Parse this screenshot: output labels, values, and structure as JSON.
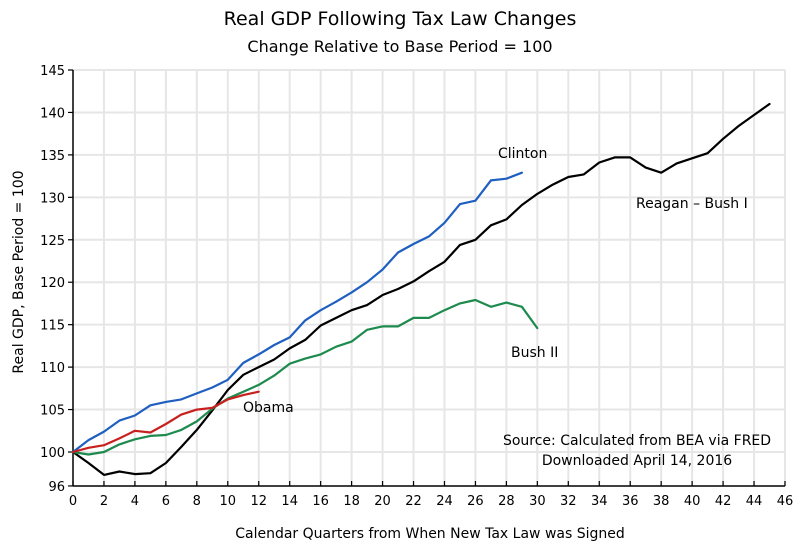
{
  "chart_data": {
    "type": "line",
    "title": "Real GDP Following Tax Law Changes",
    "subtitle": "Change Relative to Base Period = 100",
    "xlabel": "Calendar Quarters from When New Tax Law was Signed",
    "ylabel": "Real GDP, Base Period = 100",
    "xlim": [
      0,
      46
    ],
    "ylim": [
      96,
      145
    ],
    "xticks": [
      0,
      2,
      4,
      6,
      8,
      10,
      12,
      14,
      16,
      18,
      20,
      22,
      24,
      26,
      28,
      30,
      32,
      34,
      36,
      38,
      40,
      42,
      44,
      46
    ],
    "yticks": [
      96,
      100,
      105,
      110,
      115,
      120,
      125,
      130,
      135,
      140,
      145
    ],
    "grid": true,
    "series": [
      {
        "name": "Reagan - Bush I",
        "label": "Reagan – Bush I",
        "color": "#000000",
        "values": [
          100,
          98.7,
          97.3,
          97.7,
          97.4,
          97.5,
          98.7,
          100.6,
          102.6,
          104.9,
          107.3,
          109.1,
          110.0,
          110.9,
          112.2,
          113.2,
          114.9,
          115.8,
          116.7,
          117.3,
          118.5,
          119.2,
          120.1,
          121.3,
          122.4,
          124.4,
          125.0,
          126.7,
          127.4,
          129.1,
          130.4,
          131.5,
          132.4,
          132.7,
          134.1,
          134.7,
          134.7,
          133.5,
          132.9,
          134.0,
          134.6,
          135.2,
          136.9,
          138.4,
          139.7,
          141.0
        ]
      },
      {
        "name": "Clinton",
        "label": "Clinton",
        "color": "#1f5fc0",
        "values": [
          100,
          101.4,
          102.4,
          103.7,
          104.3,
          105.5,
          105.9,
          106.2,
          106.9,
          107.6,
          108.5,
          110.5,
          111.5,
          112.6,
          113.5,
          115.5,
          116.7,
          117.7,
          118.8,
          120.0,
          121.5,
          123.5,
          124.5,
          125.4,
          127.0,
          129.2,
          129.6,
          132.0,
          132.2,
          132.9
        ]
      },
      {
        "name": "Bush II",
        "label": "Bush II",
        "color": "#1d8a4e",
        "values": [
          100,
          99.7,
          100.0,
          100.9,
          101.5,
          101.9,
          102.0,
          102.6,
          103.6,
          105.1,
          106.3,
          107.1,
          107.9,
          109.0,
          110.4,
          111.0,
          111.5,
          112.4,
          113.0,
          114.4,
          114.8,
          114.8,
          115.8,
          115.8,
          116.7,
          117.5,
          117.9,
          117.1,
          117.6,
          117.1,
          114.6
        ]
      },
      {
        "name": "Obama",
        "label": "Obama",
        "color": "#c8201e",
        "values": [
          100,
          100.5,
          100.8,
          101.6,
          102.5,
          102.3,
          103.3,
          104.4,
          105.0,
          105.2,
          106.2,
          106.7,
          107.1
        ]
      }
    ],
    "annotations": {
      "source_line1": "Source:  Calculated from BEA via FRED",
      "source_line2": "Downloaded April 14, 2016"
    }
  }
}
